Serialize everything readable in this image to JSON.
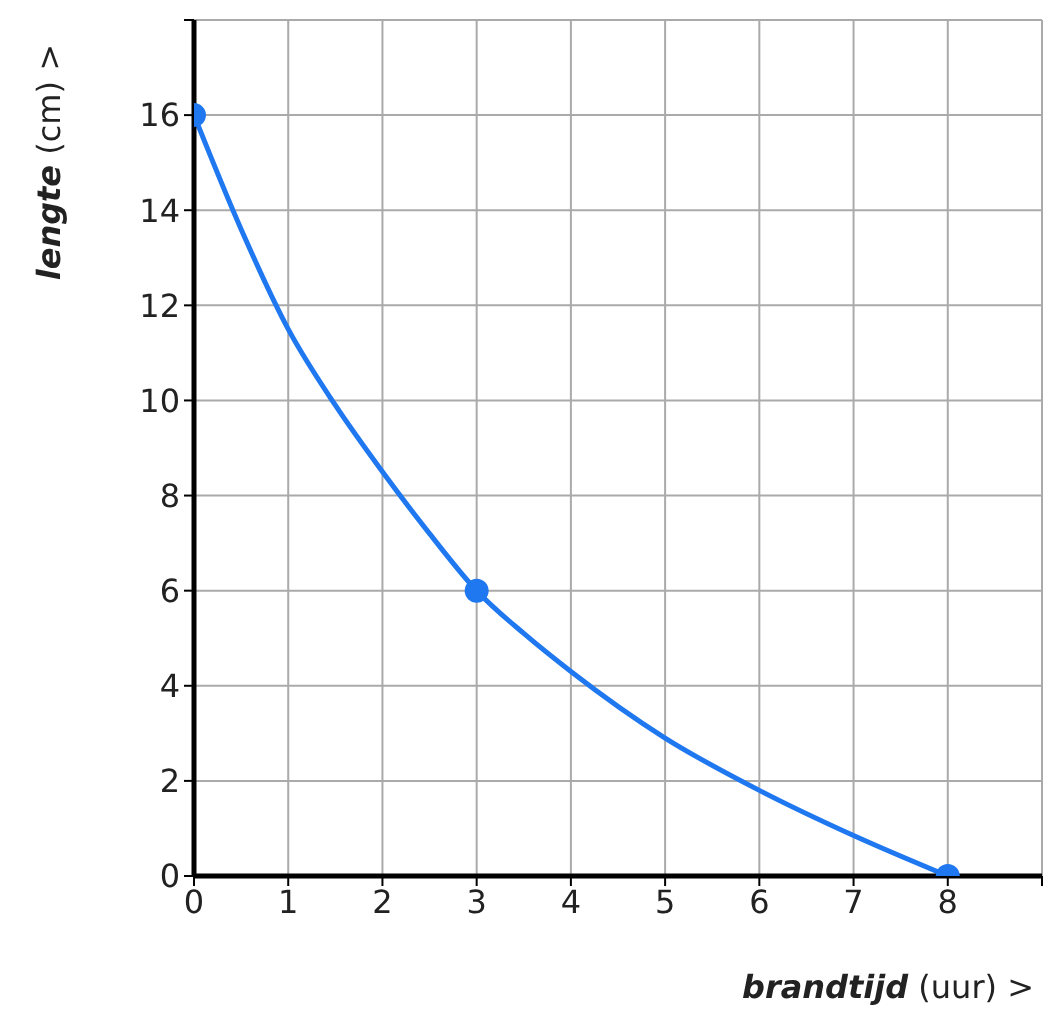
{
  "chart_data": {
    "type": "line",
    "xlabel": "brandtijd (uur) >",
    "ylabel": "lengte (cm) >",
    "xlim": [
      0,
      9
    ],
    "ylim": [
      0,
      18
    ],
    "xticks": [
      0,
      1,
      2,
      3,
      4,
      5,
      6,
      7,
      8,
      {
        "value": 9,
        "label": null
      }
    ],
    "yticks": [
      0,
      2,
      4,
      6,
      8,
      10,
      12,
      14,
      16,
      {
        "value": 18,
        "label": null
      }
    ],
    "grid": true,
    "series": [
      {
        "color": "#1f78f0",
        "marker": "none",
        "x": [
          0,
          0.5,
          1,
          1.5,
          2,
          2.5,
          3,
          3.5,
          4,
          5,
          6,
          7,
          8
        ],
        "values": [
          16,
          13.6,
          11.5,
          9.9,
          8.5,
          7.2,
          6,
          5.1,
          4.3,
          2.9,
          1.8,
          0.85,
          0
        ]
      },
      {
        "type": "scatter",
        "color": "#1f78f0",
        "marker": "circle",
        "x": [
          0,
          3,
          8
        ],
        "values": [
          16,
          6,
          0
        ]
      }
    ]
  }
}
